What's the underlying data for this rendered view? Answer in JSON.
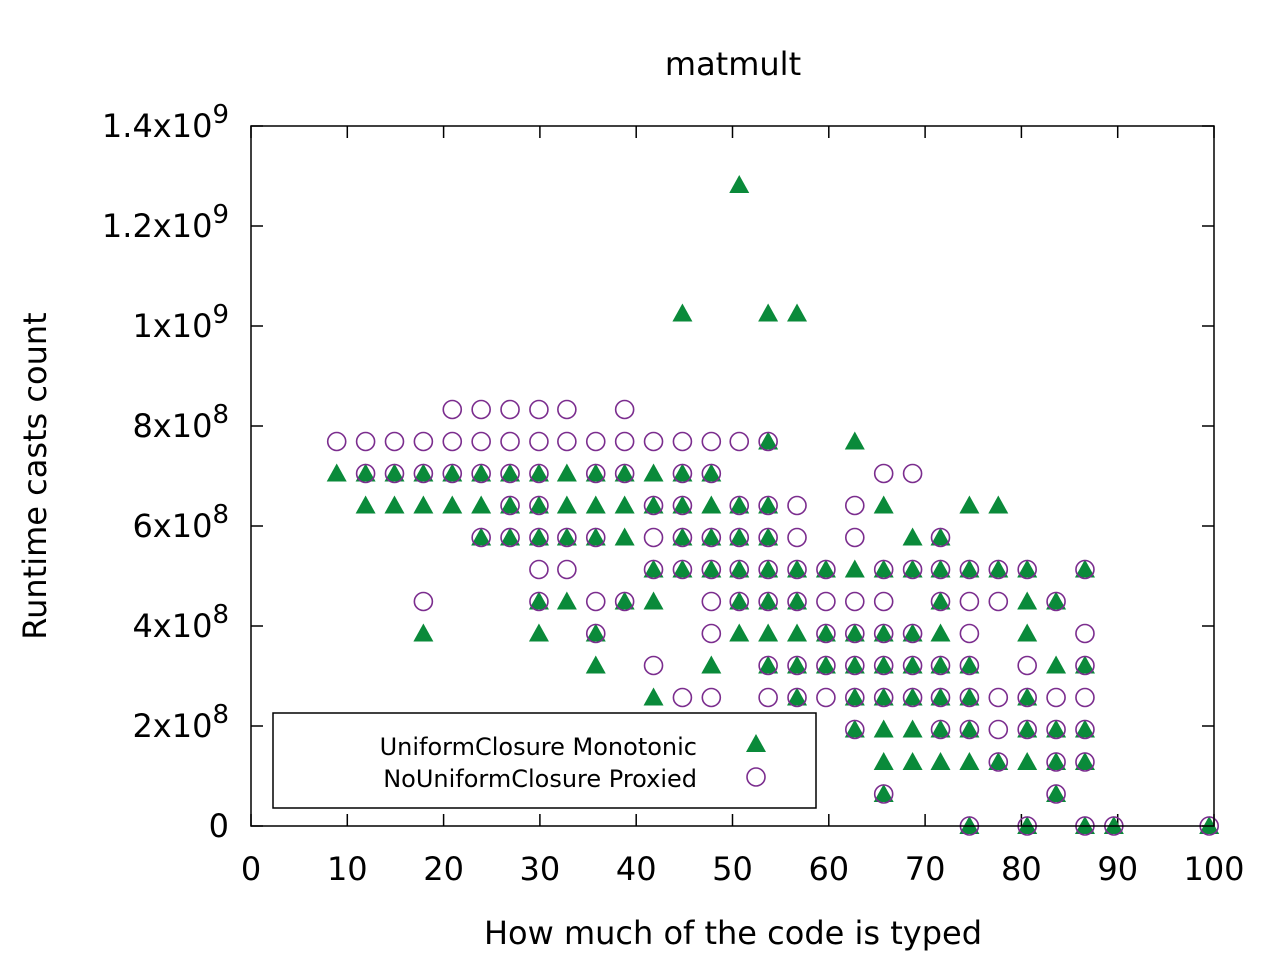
{
  "chart_data": {
    "type": "scatter",
    "title": "matmult",
    "xlabel": "How much of the code is typed",
    "ylabel": "Runtime casts count",
    "xlim": [
      0,
      100
    ],
    "ylim": [
      0,
      1400000000
    ],
    "grid": false,
    "legend_position": "bottom-left",
    "x_ticks": [
      {
        "value": 0,
        "label": "0"
      },
      {
        "value": 10,
        "label": "10"
      },
      {
        "value": 20,
        "label": "20"
      },
      {
        "value": 30,
        "label": "30"
      },
      {
        "value": 40,
        "label": "40"
      },
      {
        "value": 50,
        "label": "50"
      },
      {
        "value": 60,
        "label": "60"
      },
      {
        "value": 70,
        "label": "70"
      },
      {
        "value": 80,
        "label": "80"
      },
      {
        "value": 90,
        "label": "90"
      },
      {
        "value": 100,
        "label": "100"
      }
    ],
    "y_ticks": [
      {
        "value": 0,
        "mantissa": "0",
        "exponent": ""
      },
      {
        "value": 200000000,
        "mantissa": "2x10",
        "exponent": "8"
      },
      {
        "value": 400000000,
        "mantissa": "4x10",
        "exponent": "8"
      },
      {
        "value": 600000000,
        "mantissa": "6x10",
        "exponent": "8"
      },
      {
        "value": 800000000,
        "mantissa": "8x10",
        "exponent": "8"
      },
      {
        "value": 1000000000,
        "mantissa": "1x10",
        "exponent": "9"
      },
      {
        "value": 1200000000,
        "mantissa": "1.2x10",
        "exponent": "9"
      },
      {
        "value": 1400000000,
        "mantissa": "1.4x10",
        "exponent": "9"
      }
    ],
    "series": [
      {
        "name": "UniformClosure Monotonic",
        "marker": "filled-triangle",
        "color": "#0a8a3a",
        "x": [
          8.9,
          11.9,
          14.9,
          17.9,
          20.9,
          23.9,
          26.9,
          29.9,
          32.8,
          35.8,
          38.8,
          41.8,
          44.8,
          47.8,
          11.9,
          14.9,
          17.9,
          20.9,
          23.9,
          26.9,
          29.9,
          32.8,
          35.8,
          38.8,
          41.8,
          44.8,
          47.8,
          50.7,
          53.7,
          65.7,
          74.6,
          77.6,
          23.9,
          26.9,
          29.9,
          32.8,
          35.8,
          38.8,
          44.8,
          47.8,
          50.7,
          53.7,
          68.7,
          71.6,
          41.8,
          44.8,
          47.8,
          50.7,
          53.7,
          56.7,
          59.7,
          62.7,
          65.7,
          68.7,
          71.6,
          74.6,
          77.6,
          80.6,
          86.6,
          29.9,
          32.8,
          38.8,
          41.8,
          50.7,
          53.7,
          56.7,
          71.6,
          80.6,
          83.6,
          17.9,
          29.9,
          35.8,
          50.7,
          53.7,
          56.7,
          59.7,
          62.7,
          65.7,
          68.7,
          71.6,
          80.6,
          35.8,
          47.8,
          53.7,
          56.7,
          59.7,
          62.7,
          65.7,
          68.7,
          71.6,
          74.6,
          83.6,
          86.6,
          41.8,
          56.7,
          62.7,
          65.7,
          68.7,
          71.6,
          74.6,
          80.6,
          62.7,
          65.7,
          68.7,
          71.6,
          74.6,
          80.6,
          83.6,
          86.6,
          65.7,
          68.7,
          71.6,
          74.6,
          77.6,
          80.6,
          83.6,
          86.6,
          65.7,
          83.6,
          74.6,
          80.6,
          86.6,
          89.6,
          99.5,
          44.8,
          53.7,
          56.7,
          50.7,
          53.7,
          62.7
        ],
        "y": [
          705000000,
          705000000,
          705000000,
          705000000,
          705000000,
          705000000,
          705000000,
          705000000,
          705000000,
          705000000,
          705000000,
          705000000,
          705000000,
          705000000,
          641000000,
          641000000,
          641000000,
          641000000,
          641000000,
          641000000,
          641000000,
          641000000,
          641000000,
          641000000,
          641000000,
          641000000,
          641000000,
          641000000,
          641000000,
          641000000,
          641000000,
          641000000,
          577000000,
          577000000,
          577000000,
          577000000,
          577000000,
          577000000,
          577000000,
          577000000,
          577000000,
          577000000,
          577000000,
          577000000,
          513000000,
          513000000,
          513000000,
          513000000,
          513000000,
          513000000,
          513000000,
          513000000,
          513000000,
          513000000,
          513000000,
          513000000,
          513000000,
          513000000,
          513000000,
          449000000,
          449000000,
          449000000,
          449000000,
          449000000,
          449000000,
          449000000,
          449000000,
          449000000,
          449000000,
          385000000,
          385000000,
          385000000,
          385000000,
          385000000,
          385000000,
          385000000,
          385000000,
          385000000,
          385000000,
          385000000,
          385000000,
          321000000,
          321000000,
          321000000,
          321000000,
          321000000,
          321000000,
          321000000,
          321000000,
          321000000,
          321000000,
          321000000,
          321000000,
          257000000,
          257000000,
          257000000,
          257000000,
          257000000,
          257000000,
          257000000,
          257000000,
          193000000,
          193000000,
          193000000,
          193000000,
          193000000,
          193000000,
          193000000,
          193000000,
          128000000,
          128000000,
          128000000,
          128000000,
          128000000,
          128000000,
          128000000,
          128000000,
          64000000,
          64000000,
          0,
          0,
          0,
          0,
          0,
          1025000000,
          1025000000,
          1025000000,
          1282000000,
          769000000,
          769000000
        ]
      },
      {
        "name": "NoUniformClosure Proxied",
        "marker": "open-circle",
        "color": "#7b2d8e",
        "x": [
          20.9,
          23.9,
          26.9,
          29.9,
          32.8,
          38.8,
          8.9,
          11.9,
          14.9,
          17.9,
          20.9,
          23.9,
          26.9,
          29.9,
          32.8,
          35.8,
          38.8,
          41.8,
          44.8,
          47.8,
          50.7,
          53.7,
          11.9,
          14.9,
          17.9,
          20.9,
          23.9,
          26.9,
          29.9,
          35.8,
          38.8,
          44.8,
          47.8,
          65.7,
          68.7,
          26.9,
          29.9,
          41.8,
          44.8,
          50.7,
          53.7,
          56.7,
          62.7,
          23.9,
          26.9,
          29.9,
          32.8,
          35.8,
          41.8,
          44.8,
          47.8,
          50.7,
          53.7,
          56.7,
          62.7,
          71.6,
          29.9,
          32.8,
          41.8,
          44.8,
          47.8,
          50.7,
          53.7,
          56.7,
          59.7,
          65.7,
          68.7,
          71.6,
          74.6,
          77.6,
          80.6,
          86.6,
          17.9,
          29.9,
          35.8,
          38.8,
          47.8,
          50.7,
          53.7,
          56.7,
          59.7,
          62.7,
          65.7,
          71.6,
          74.6,
          77.6,
          83.6,
          35.8,
          47.8,
          59.7,
          62.7,
          65.7,
          68.7,
          74.6,
          86.6,
          41.8,
          53.7,
          56.7,
          59.7,
          62.7,
          65.7,
          68.7,
          71.6,
          74.6,
          80.6,
          86.6,
          44.8,
          47.8,
          53.7,
          56.7,
          59.7,
          62.7,
          65.7,
          68.7,
          71.6,
          74.6,
          77.6,
          80.6,
          83.6,
          86.6,
          62.7,
          71.6,
          74.6,
          77.6,
          80.6,
          83.6,
          86.6,
          77.6,
          83.6,
          86.6,
          65.7,
          83.6,
          74.6,
          80.6,
          86.6,
          89.6,
          99.5
        ],
        "y": [
          833000000,
          833000000,
          833000000,
          833000000,
          833000000,
          833000000,
          769000000,
          769000000,
          769000000,
          769000000,
          769000000,
          769000000,
          769000000,
          769000000,
          769000000,
          769000000,
          769000000,
          769000000,
          769000000,
          769000000,
          769000000,
          769000000,
          705000000,
          705000000,
          705000000,
          705000000,
          705000000,
          705000000,
          705000000,
          705000000,
          705000000,
          705000000,
          705000000,
          705000000,
          705000000,
          641000000,
          641000000,
          641000000,
          641000000,
          641000000,
          641000000,
          641000000,
          641000000,
          577000000,
          577000000,
          577000000,
          577000000,
          577000000,
          577000000,
          577000000,
          577000000,
          577000000,
          577000000,
          577000000,
          577000000,
          577000000,
          513000000,
          513000000,
          513000000,
          513000000,
          513000000,
          513000000,
          513000000,
          513000000,
          513000000,
          513000000,
          513000000,
          513000000,
          513000000,
          513000000,
          513000000,
          513000000,
          449000000,
          449000000,
          449000000,
          449000000,
          449000000,
          449000000,
          449000000,
          449000000,
          449000000,
          449000000,
          449000000,
          449000000,
          449000000,
          449000000,
          449000000,
          385000000,
          385000000,
          385000000,
          385000000,
          385000000,
          385000000,
          385000000,
          385000000,
          321000000,
          321000000,
          321000000,
          321000000,
          321000000,
          321000000,
          321000000,
          321000000,
          321000000,
          321000000,
          321000000,
          257000000,
          257000000,
          257000000,
          257000000,
          257000000,
          257000000,
          257000000,
          257000000,
          257000000,
          257000000,
          257000000,
          257000000,
          257000000,
          257000000,
          193000000,
          193000000,
          193000000,
          193000000,
          193000000,
          193000000,
          193000000,
          128000000,
          128000000,
          128000000,
          64000000,
          64000000,
          0,
          0,
          0,
          0,
          0
        ]
      }
    ]
  }
}
